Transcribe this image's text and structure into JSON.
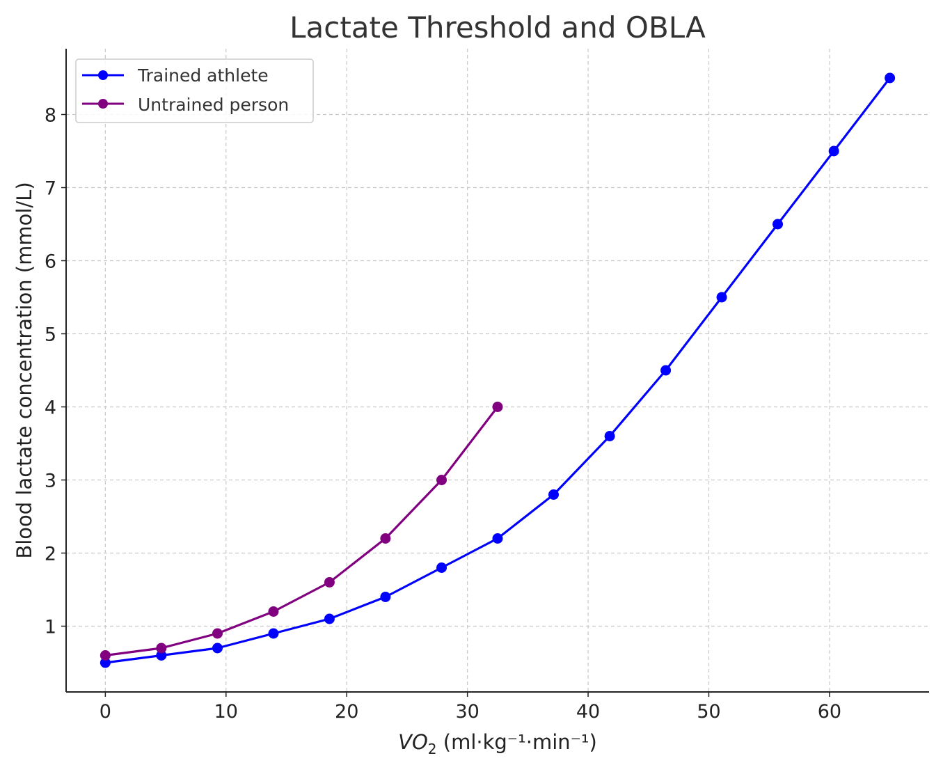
{
  "chart_data": {
    "type": "line",
    "title": "Lactate Threshold and OBLA",
    "xlabel_main": "VO",
    "xlabel_sub": "2",
    "xlabel_rest": " (ml·kg⁻¹·min⁻¹)",
    "ylabel": "Blood lactate concentration (mmol/L)",
    "xlim": [
      -3.25,
      68.25
    ],
    "ylim": [
      0.1,
      8.9
    ],
    "xticks": [
      0,
      10,
      20,
      30,
      40,
      50,
      60
    ],
    "yticks": [
      1,
      2,
      3,
      4,
      5,
      6,
      7,
      8
    ],
    "grid": true,
    "legend_position": "top-left",
    "series": [
      {
        "name": "Trained athlete",
        "color": "#0000ff",
        "x": [
          0,
          4.64,
          9.29,
          13.93,
          18.57,
          23.21,
          27.86,
          32.5,
          37.14,
          41.79,
          46.43,
          51.07,
          55.71,
          60.36,
          65
        ],
        "y": [
          0.5,
          0.6,
          0.7,
          0.9,
          1.1,
          1.4,
          1.8,
          2.2,
          2.8,
          3.6,
          4.5,
          5.5,
          6.5,
          7.5,
          8.5
        ]
      },
      {
        "name": "Untrained person",
        "color": "#800080",
        "x": [
          0,
          4.64,
          9.29,
          13.93,
          18.57,
          23.21,
          27.86,
          32.5
        ],
        "y": [
          0.6,
          0.7,
          0.9,
          1.2,
          1.6,
          2.2,
          3.0,
          4.0
        ]
      }
    ]
  }
}
